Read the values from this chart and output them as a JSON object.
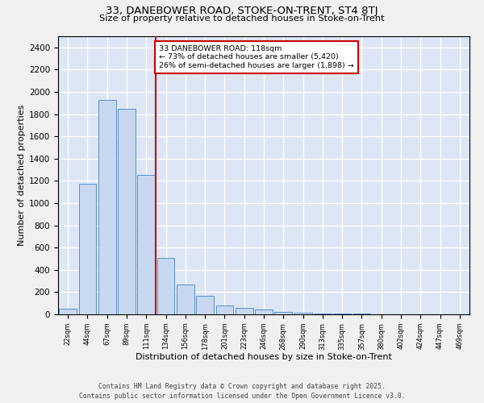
{
  "title_line1": "33, DANEBOWER ROAD, STOKE-ON-TRENT, ST4 8TJ",
  "title_line2": "Size of property relative to detached houses in Stoke-on-Trent",
  "xlabel": "Distribution of detached houses by size in Stoke-on-Trent",
  "ylabel": "Number of detached properties",
  "annotation_line1": "33 DANEBOWER ROAD: 118sqm",
  "annotation_line2": "← 73% of detached houses are smaller (5,420)",
  "annotation_line3": "26% of semi-detached houses are larger (1,898) →",
  "footer_line1": "Contains HM Land Registry data © Crown copyright and database right 2025.",
  "footer_line2": "Contains public sector information licensed under the Open Government Licence v3.0.",
  "bar_color": "#c8d8f0",
  "bar_edge_color": "#5b8fc9",
  "background_color": "#dce6f5",
  "grid_color": "#ffffff",
  "vline_color": "#cc0000",
  "vline_x_idx": 4,
  "annotation_box_edgecolor": "#cc0000",
  "annotation_bg": "#ffffff",
  "categories": [
    "22sqm",
    "44sqm",
    "67sqm",
    "89sqm",
    "111sqm",
    "134sqm",
    "156sqm",
    "178sqm",
    "201sqm",
    "223sqm",
    "246sqm",
    "268sqm",
    "290sqm",
    "313sqm",
    "335sqm",
    "357sqm",
    "380sqm",
    "402sqm",
    "424sqm",
    "447sqm",
    "469sqm"
  ],
  "values": [
    50,
    1175,
    1930,
    1850,
    1250,
    510,
    270,
    165,
    80,
    55,
    40,
    25,
    15,
    10,
    8,
    5,
    3,
    2,
    1,
    1,
    0
  ],
  "ylim": [
    0,
    2500
  ],
  "yticks": [
    0,
    200,
    400,
    600,
    800,
    1000,
    1200,
    1400,
    1600,
    1800,
    2000,
    2200,
    2400
  ],
  "fig_width": 6.0,
  "fig_height": 5.0,
  "dpi": 100
}
